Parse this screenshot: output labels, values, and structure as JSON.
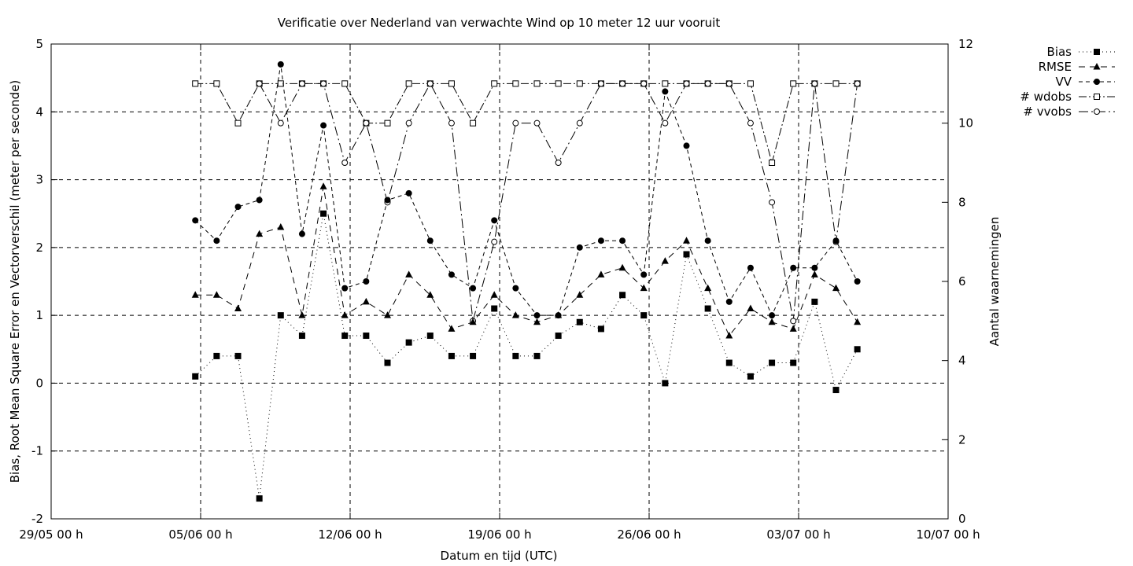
{
  "chart_data": {
    "type": "line",
    "title": "Verificatie over Nederland van verwachte Wind op 10 meter 12 uur vooruit",
    "xlabel": "Datum en tijd (UTC)",
    "ylabel": "Bias, Root Mean Square Error en Vectorverschil (meter per seconde)",
    "y2label": "Aantal waarnemingen",
    "xlim": [
      "2023-05-29",
      "2023-07-10"
    ],
    "xticks": [
      "29/05 00 h",
      "05/06 00 h",
      "12/06 00 h",
      "19/06 00 h",
      "26/06 00 h",
      "03/07 00 h",
      "10/07 00 h"
    ],
    "ylim": [
      -2,
      5
    ],
    "yticks": [
      "-2",
      "-1",
      "0",
      "1",
      "2",
      "3",
      "4",
      "5"
    ],
    "y2lim": [
      0,
      12
    ],
    "y2ticks": [
      "0",
      "2",
      "4",
      "6",
      "8",
      "10",
      "12"
    ],
    "grid": true,
    "legend_position": "outside-top-right",
    "x": [
      "04/06 12h",
      "05/06 12h",
      "06/06 12h",
      "07/06 12h",
      "08/06 12h",
      "09/06 12h",
      "10/06 12h",
      "11/06 12h",
      "12/06 12h",
      "13/06 12h",
      "14/06 12h",
      "15/06 12h",
      "16/06 12h",
      "17/06 12h",
      "18/06 12h",
      "19/06 12h",
      "20/06 12h",
      "21/06 12h",
      "22/06 12h",
      "23/06 12h",
      "24/06 12h",
      "25/06 12h",
      "26/06 12h",
      "27/06 12h",
      "28/06 12h",
      "29/06 12h",
      "30/06 12h",
      "01/07 12h",
      "02/07 12h",
      "03/07 12h",
      "04/07 12h",
      "05/07 12h"
    ],
    "x_days": [
      6.75,
      7.75,
      8.75,
      9.75,
      10.75,
      11.75,
      12.75,
      13.75,
      14.75,
      15.75,
      16.75,
      17.75,
      18.75,
      19.75,
      20.75,
      21.75,
      22.75,
      23.75,
      24.75,
      25.75,
      26.75,
      27.75,
      28.75,
      29.75,
      30.75,
      31.75,
      32.75,
      33.75,
      34.75,
      35.75,
      36.75,
      37.75
    ],
    "series": [
      {
        "name": "Bias",
        "axis": "y1",
        "marker": "filled-square",
        "dash": "1,4",
        "values": [
          0.1,
          0.4,
          0.4,
          -1.7,
          1.0,
          0.7,
          2.5,
          0.7,
          0.7,
          0.3,
          0.6,
          0.7,
          0.4,
          0.4,
          1.1,
          0.4,
          0.4,
          0.7,
          0.9,
          0.8,
          1.3,
          1.0,
          0.0,
          1.9,
          1.1,
          0.3,
          0.1,
          0.3,
          0.3,
          1.2,
          -0.1,
          0.5
        ]
      },
      {
        "name": "RMSE",
        "axis": "y1",
        "marker": "filled-triangle",
        "dash": "8,6",
        "values": [
          1.3,
          1.3,
          1.1,
          2.2,
          2.3,
          1.0,
          2.9,
          1.0,
          1.2,
          1.0,
          1.6,
          1.3,
          0.8,
          0.9,
          1.3,
          1.0,
          0.9,
          1.0,
          1.3,
          1.6,
          1.7,
          1.4,
          1.8,
          2.1,
          1.4,
          0.7,
          1.1,
          0.9,
          0.8,
          1.6,
          1.4,
          0.9
        ]
      },
      {
        "name": "VV",
        "axis": "y1",
        "marker": "filled-circle",
        "dash": "5,4",
        "values": [
          2.4,
          2.1,
          2.6,
          2.7,
          4.7,
          2.2,
          3.8,
          1.4,
          1.5,
          2.7,
          2.8,
          2.1,
          1.6,
          1.4,
          2.4,
          1.4,
          1.0,
          1.0,
          2.0,
          2.1,
          2.1,
          1.6,
          4.3,
          3.5,
          2.1,
          1.2,
          1.7,
          1.0,
          1.7,
          1.7,
          2.1,
          1.5
        ]
      },
      {
        "name": "# wdobs",
        "axis": "y2",
        "marker": "open-square",
        "dash": "10,3,2,3",
        "values": [
          11,
          11,
          10,
          11,
          11,
          11,
          11,
          11,
          10,
          10,
          11,
          11,
          11,
          10,
          11,
          11,
          11,
          11,
          11,
          11,
          11,
          11,
          11,
          11,
          11,
          11,
          11,
          9,
          11,
          11,
          11,
          11
        ]
      },
      {
        "name": "# vvobs",
        "axis": "y2",
        "marker": "open-circle",
        "dash": "12,4,2,4",
        "values": [
          null,
          null,
          null,
          11,
          10,
          11,
          11,
          9,
          10,
          8,
          10,
          11,
          10,
          5,
          7,
          10,
          10,
          9,
          10,
          11,
          11,
          11,
          10,
          11,
          11,
          11,
          10,
          8,
          5,
          11,
          7,
          11
        ]
      }
    ]
  }
}
